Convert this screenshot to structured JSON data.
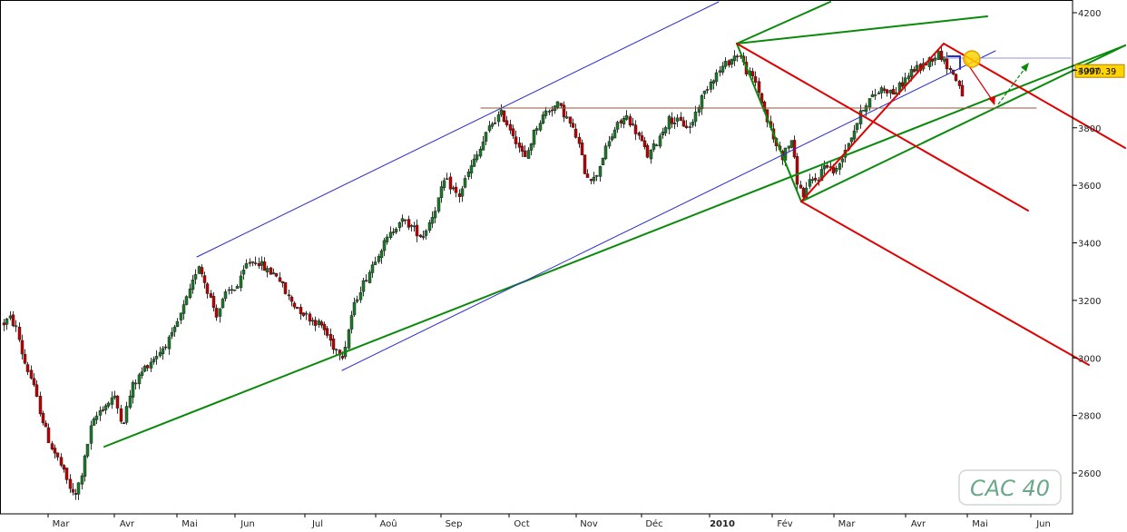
{
  "chart_data": {
    "type": "candlestick",
    "title": "CAC 40",
    "last_price_label": "3997.39",
    "y_axis": {
      "ticks": [
        "4200",
        "4000",
        "3800",
        "3600",
        "3400",
        "3200",
        "3000",
        "2800",
        "2600"
      ],
      "ylim": [
        2480,
        4210
      ],
      "position": "right"
    },
    "x_axis": {
      "ticks": [
        "Mar",
        "Avr",
        "Mai",
        "Jun",
        "Jul",
        "Aoû",
        "Sep",
        "Oct",
        "Nov",
        "Déc",
        "2010",
        "Fév",
        "Mar",
        "Avr",
        "Mai",
        "Jun"
      ],
      "labels_bold": [
        "2010"
      ]
    },
    "grid": false,
    "colors": {
      "up": "#1a7a2a",
      "down": "#c00000",
      "channel_green": "#0a8a0a",
      "channel_blue": "#2a2ad0",
      "pitchfork_red": "#e00000",
      "support_brown": "#8b5a3c",
      "resistance_lilac": "#9090e0",
      "highlight": "#ffd400"
    },
    "annotations": [
      {
        "name": "rising-green-channel",
        "color": "green"
      },
      {
        "name": "blue-parallel-channel",
        "color": "blue"
      },
      {
        "name": "red-falling-channel",
        "color": "red"
      },
      {
        "name": "horizontal-support",
        "color": "brown",
        "value": 3860
      },
      {
        "name": "horizontal-resistance",
        "color": "lilac",
        "value": 4030
      }
    ]
  }
}
